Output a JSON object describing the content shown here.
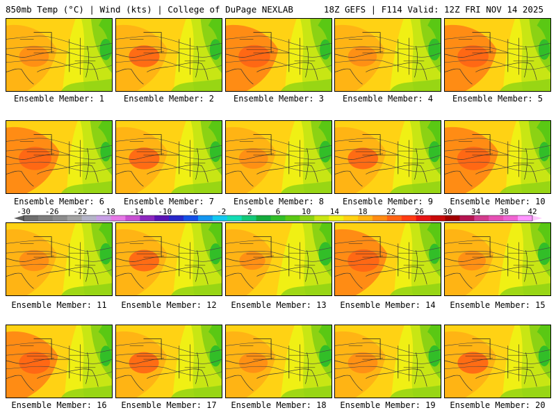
{
  "header": {
    "left": "850mb Temp (°C) | Wind (kts) | College of DuPage NEXLAB",
    "right": "18Z GEFS | F114 Valid: 12Z FRI NOV 14 2025"
  },
  "members": [
    {
      "label": "Ensemble Member: 1",
      "warm": 0.55
    },
    {
      "label": "Ensemble Member: 2",
      "warm": 0.6
    },
    {
      "label": "Ensemble Member: 3",
      "warm": 0.65
    },
    {
      "label": "Ensemble Member: 4",
      "warm": 0.5
    },
    {
      "label": "Ensemble Member: 5",
      "warm": 0.62
    },
    {
      "label": "Ensemble Member: 6",
      "warm": 0.7
    },
    {
      "label": "Ensemble Member: 7",
      "warm": 0.6
    },
    {
      "label": "Ensemble Member: 8",
      "warm": 0.52
    },
    {
      "label": "Ensemble Member: 9",
      "warm": 0.58
    },
    {
      "label": "Ensemble Member: 10",
      "warm": 0.72
    },
    {
      "label": "Ensemble Member: 11",
      "warm": 0.55
    },
    {
      "label": "Ensemble Member: 12",
      "warm": 0.58
    },
    {
      "label": "Ensemble Member: 13",
      "warm": 0.35
    },
    {
      "label": "Ensemble Member: 14",
      "warm": 0.65
    },
    {
      "label": "Ensemble Member: 15",
      "warm": 0.45
    },
    {
      "label": "Ensemble Member: 16",
      "warm": 0.62
    },
    {
      "label": "Ensemble Member: 17",
      "warm": 0.56
    },
    {
      "label": "Ensemble Member: 18",
      "warm": 0.5
    },
    {
      "label": "Ensemble Member: 19",
      "warm": 0.55
    },
    {
      "label": "Ensemble Member: 20",
      "warm": 0.6
    }
  ],
  "colorbar": {
    "ticks": [
      "-30",
      "-26",
      "-22",
      "-18",
      "-14",
      "-10",
      "-6",
      "-2",
      "2",
      "6",
      "10",
      "14",
      "18",
      "22",
      "26",
      "30",
      "34",
      "38",
      "42"
    ],
    "colors": [
      "#6e6e6e",
      "#7d7d7d",
      "#8c8c8c",
      "#a3a3a3",
      "#b4b4c8",
      "#c8a0e6",
      "#e678e6",
      "#c850d2",
      "#8c28be",
      "#5a14b4",
      "#2828c8",
      "#1450e6",
      "#1496f0",
      "#14c8f0",
      "#14dcb4",
      "#14c878",
      "#14aa3c",
      "#32be28",
      "#5ac814",
      "#8cd214",
      "#c8e614",
      "#f0f014",
      "#ffd214",
      "#ffb414",
      "#ff8c14",
      "#ff6414",
      "#ff3c14",
      "#e61414",
      "#c80a0a",
      "#a00000",
      "#b41450",
      "#d23c8c",
      "#e650b4",
      "#f064d2",
      "#ff96ff"
    ]
  }
}
